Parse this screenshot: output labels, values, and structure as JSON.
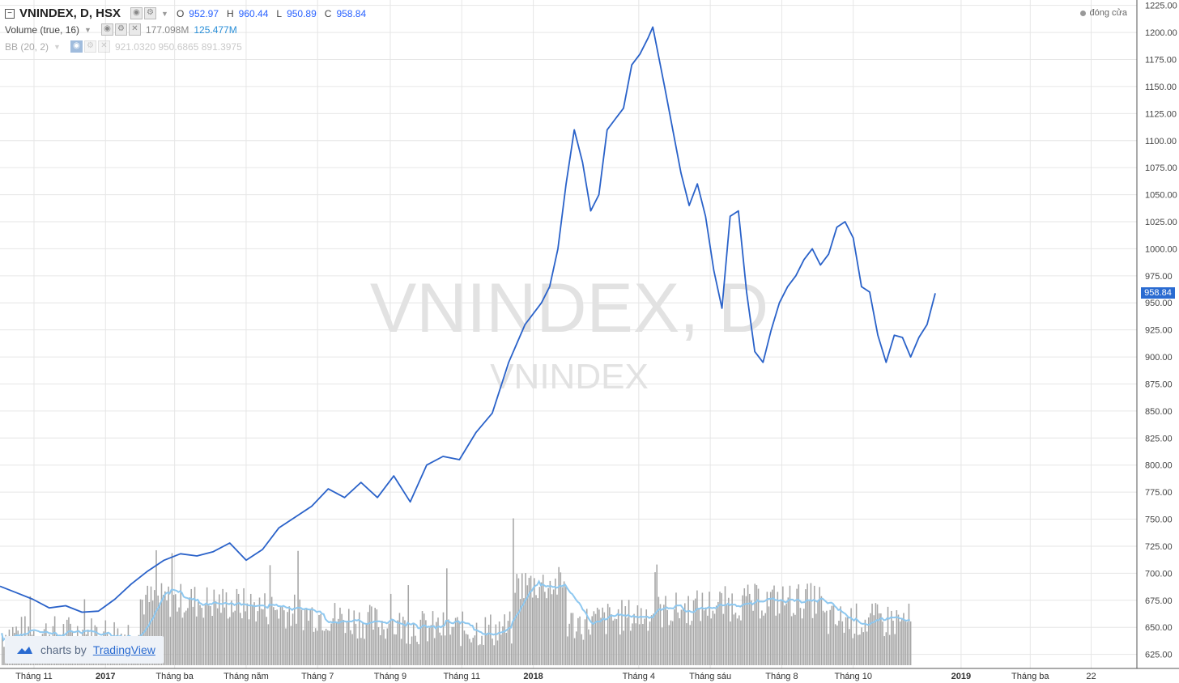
{
  "legend": {
    "symbol": "VNINDEX, D, HSX",
    "o_key": "O",
    "o_val": "952.97",
    "h_key": "H",
    "h_val": "960.44",
    "l_key": "L",
    "l_val": "950.89",
    "c_key": "C",
    "c_val": "958.84",
    "volume_label": "Volume (true, 16)",
    "volume_val1": "177.098M",
    "volume_val2": "125.477M",
    "bb_label": "BB (20, 2)",
    "bb_vals": "921.0320  950.6865  891.3975"
  },
  "close_legend": "đóng cửa",
  "last_price": "958.84",
  "branding": {
    "prefix": "charts by",
    "brand": "TradingView"
  },
  "colors": {
    "price_line": "#2a62c9",
    "volume_bar": "#a6a6a6",
    "volume_ma": "#8ec8f0",
    "grid": "#e6e6e6",
    "badge": "#2a6bd1"
  },
  "chart_data": {
    "type": "line",
    "title": "VNINDEX",
    "subtitle": "VNINDEX, D",
    "ylim": [
      612,
      1230
    ],
    "y_ticks": [
      625,
      650,
      675,
      700,
      725,
      750,
      775,
      800,
      825,
      850,
      875,
      900,
      925,
      950,
      975,
      1000,
      1025,
      1050,
      1075,
      1100,
      1125,
      1150,
      1175,
      1200,
      1225
    ],
    "y_tick_labels": [
      "625.00",
      "650.00",
      "675.00",
      "700.00",
      "725.00",
      "750.00",
      "775.00",
      "800.00",
      "825.00",
      "850.00",
      "875.00",
      "900.00",
      "925.00",
      "950.00",
      "975.00",
      "1000.00",
      "1025.00",
      "1050.00",
      "1075.00",
      "1100.00",
      "1125.00",
      "1150.00",
      "1175.00",
      "1200.00",
      "1225.00"
    ],
    "x_ticks": [
      "Tháng 11",
      "2017",
      "Tháng ba",
      "Tháng năm",
      "Tháng 7",
      "Tháng 9",
      "Tháng 11",
      "2018",
      "Tháng 4",
      "Tháng sáu",
      "Tháng 8",
      "Tháng 10",
      "2019",
      "Tháng ba",
      "22"
    ],
    "x_ticks_bold": [
      "2017",
      "2018",
      "2019"
    ],
    "x_range": [
      "2016-10-03",
      "2019-05-31"
    ],
    "x_tick_dates": [
      "2016-11-01",
      "2017-01-01",
      "2017-03-01",
      "2017-05-01",
      "2017-07-01",
      "2017-09-01",
      "2017-11-01",
      "2018-01-01",
      "2018-04-01",
      "2018-06-01",
      "2018-08-01",
      "2018-10-01",
      "2019-01-01",
      "2019-03-01",
      "2019-04-22"
    ],
    "grid": true,
    "series": [
      {
        "name": "VNINDEX",
        "points": [
          [
            "2016-10-03",
            688
          ],
          [
            "2016-10-17",
            682
          ],
          [
            "2016-10-31",
            676
          ],
          [
            "2016-11-14",
            668
          ],
          [
            "2016-11-28",
            670
          ],
          [
            "2016-12-12",
            664
          ],
          [
            "2016-12-26",
            665
          ],
          [
            "2017-01-09",
            676
          ],
          [
            "2017-01-23",
            690
          ],
          [
            "2017-02-06",
            702
          ],
          [
            "2017-02-20",
            712
          ],
          [
            "2017-03-06",
            718
          ],
          [
            "2017-03-20",
            716
          ],
          [
            "2017-04-03",
            720
          ],
          [
            "2017-04-17",
            728
          ],
          [
            "2017-05-01",
            712
          ],
          [
            "2017-05-15",
            722
          ],
          [
            "2017-05-29",
            742
          ],
          [
            "2017-06-12",
            752
          ],
          [
            "2017-06-26",
            762
          ],
          [
            "2017-07-10",
            778
          ],
          [
            "2017-07-24",
            770
          ],
          [
            "2017-08-07",
            784
          ],
          [
            "2017-08-21",
            770
          ],
          [
            "2017-09-04",
            790
          ],
          [
            "2017-09-18",
            766
          ],
          [
            "2017-10-02",
            800
          ],
          [
            "2017-10-16",
            808
          ],
          [
            "2017-10-30",
            805
          ],
          [
            "2017-11-13",
            830
          ],
          [
            "2017-11-27",
            848
          ],
          [
            "2017-12-11",
            895
          ],
          [
            "2017-12-25",
            930
          ],
          [
            "2018-01-01",
            940
          ],
          [
            "2018-01-08",
            950
          ],
          [
            "2018-01-15",
            965
          ],
          [
            "2018-01-22",
            1000
          ],
          [
            "2018-01-29",
            1060
          ],
          [
            "2018-02-05",
            1110
          ],
          [
            "2018-02-12",
            1080
          ],
          [
            "2018-02-19",
            1035
          ],
          [
            "2018-02-26",
            1050
          ],
          [
            "2018-03-05",
            1110
          ],
          [
            "2018-03-12",
            1120
          ],
          [
            "2018-03-19",
            1130
          ],
          [
            "2018-03-26",
            1170
          ],
          [
            "2018-04-02",
            1180
          ],
          [
            "2018-04-09",
            1195
          ],
          [
            "2018-04-13",
            1205
          ],
          [
            "2018-04-23",
            1150
          ],
          [
            "2018-05-07",
            1070
          ],
          [
            "2018-05-14",
            1040
          ],
          [
            "2018-05-21",
            1060
          ],
          [
            "2018-05-28",
            1030
          ],
          [
            "2018-06-04",
            980
          ],
          [
            "2018-06-11",
            945
          ],
          [
            "2018-06-18",
            1030
          ],
          [
            "2018-06-25",
            1035
          ],
          [
            "2018-07-02",
            960
          ],
          [
            "2018-07-09",
            905
          ],
          [
            "2018-07-16",
            895
          ],
          [
            "2018-07-23",
            925
          ],
          [
            "2018-07-30",
            950
          ],
          [
            "2018-08-06",
            965
          ],
          [
            "2018-08-13",
            975
          ],
          [
            "2018-08-20",
            990
          ],
          [
            "2018-08-27",
            1000
          ],
          [
            "2018-09-03",
            985
          ],
          [
            "2018-09-10",
            995
          ],
          [
            "2018-09-17",
            1020
          ],
          [
            "2018-09-24",
            1025
          ],
          [
            "2018-10-01",
            1010
          ],
          [
            "2018-10-08",
            965
          ],
          [
            "2018-10-15",
            960
          ],
          [
            "2018-10-22",
            920
          ],
          [
            "2018-10-29",
            895
          ],
          [
            "2018-11-05",
            920
          ],
          [
            "2018-11-12",
            918
          ],
          [
            "2018-11-19",
            900
          ],
          [
            "2018-11-26",
            918
          ],
          [
            "2018-12-03",
            930
          ],
          [
            "2018-12-10",
            958.84
          ]
        ]
      },
      {
        "name": "Volume",
        "type": "bar",
        "values_millions": "daily volume bars, range ~60–250",
        "ma_length": 16
      }
    ]
  }
}
